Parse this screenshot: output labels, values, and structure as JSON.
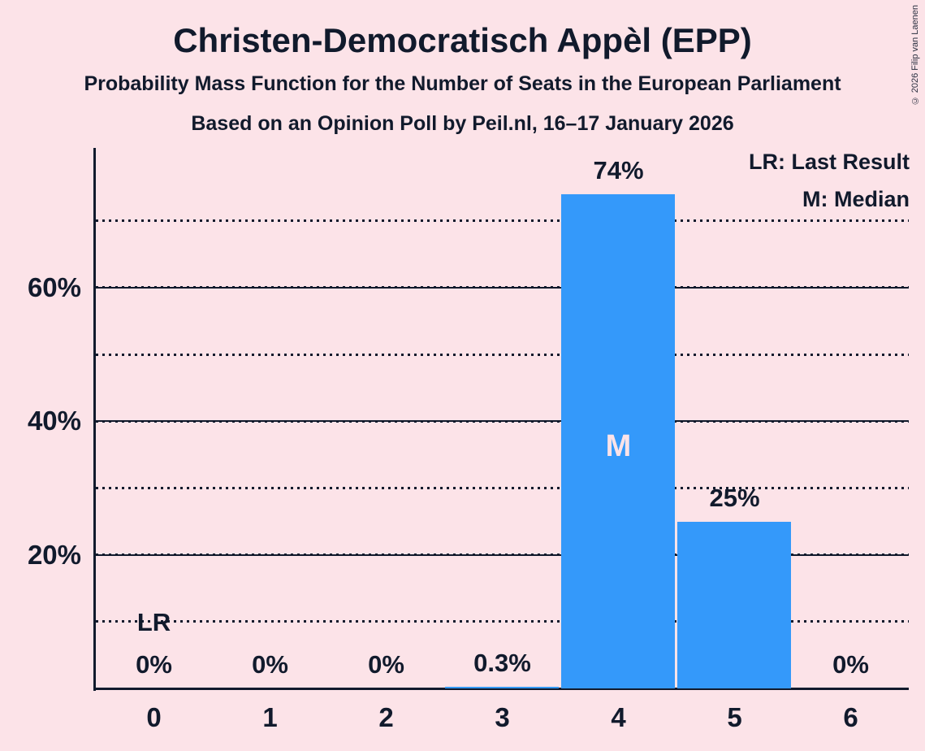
{
  "header": {
    "title": "Christen-Democratisch Appèl (EPP)",
    "subtitle1": "Probability Mass Function for the Number of Seats in the European Parliament",
    "subtitle2": "Based on an Opinion Poll by Peil.nl, 16–17 January 2026",
    "copyright": "© 2026 Filip van Laenen"
  },
  "legend": {
    "last_result": "LR: Last Result",
    "median": "M: Median"
  },
  "colors": {
    "background": "#fce3e8",
    "text": "#111a2c",
    "bar": "#3499fa"
  },
  "chart_data": {
    "type": "bar",
    "title": "Christen-Democratisch Appèl (EPP)",
    "categories": [
      "0",
      "1",
      "2",
      "3",
      "4",
      "5",
      "6"
    ],
    "values": [
      0,
      0,
      0,
      0.3,
      74,
      25,
      0
    ],
    "value_labels": [
      "0%",
      "0%",
      "0%",
      "0.3%",
      "74%",
      "25%",
      "0%"
    ],
    "xlabel": "",
    "ylabel": "",
    "ylim": [
      0,
      80.9
    ],
    "yticks": [
      {
        "pct": 20,
        "label": "20%"
      },
      {
        "pct": 40,
        "label": "40%"
      },
      {
        "pct": 60,
        "label": "60%"
      }
    ],
    "minor_gridlines_pct": [
      10,
      30,
      50,
      70
    ],
    "grid": "horizontal-dotted-minor-solid-major",
    "legend_position": "top-right",
    "annotations": [
      {
        "label": "LR",
        "meaning": "Last Result",
        "category": "0"
      },
      {
        "label": "M",
        "meaning": "Median",
        "category": "4"
      }
    ]
  }
}
